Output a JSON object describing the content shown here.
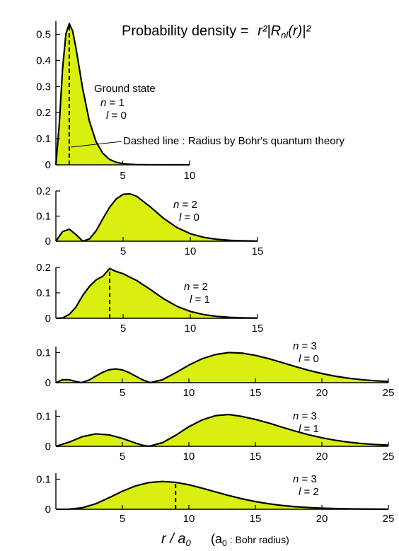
{
  "figure_title": {
    "prefix": "Probability density =",
    "formula": "r²|R",
    "formula_sub": "nl",
    "formula_end": "(r)|²"
  },
  "xaxis": {
    "symbol": "r / a",
    "symbol_sub": "0",
    "note_open": "(a",
    "note_sub": "0",
    "note_rest": ": Bohr radius)"
  },
  "colors": {
    "fill": "#d8ef0f",
    "stroke": "#000000"
  },
  "chart_data": [
    {
      "type": "area",
      "id": "n1l0",
      "labels": [
        "Ground state",
        "n = 1",
        "l = 0"
      ],
      "annotation": "Dashed line : Radius by Bohr's quantum theory",
      "dashed_x": 1,
      "xlim": [
        0,
        10
      ],
      "ylim": [
        0,
        0.55
      ],
      "xticks": [
        5,
        10
      ],
      "yticks": [
        0,
        0.1,
        0.2,
        0.3,
        0.4,
        0.5
      ],
      "ytick_labels": [
        "0",
        "0.1",
        "0.2",
        "0.3",
        "0.4",
        "0.5"
      ],
      "x": [
        0,
        0.25,
        0.5,
        0.75,
        1,
        1.25,
        1.5,
        1.75,
        2,
        2.5,
        3,
        3.5,
        4,
        4.5,
        5,
        5.5,
        6,
        7,
        8,
        9,
        10
      ],
      "y": [
        0,
        0.152,
        0.368,
        0.502,
        0.541,
        0.513,
        0.448,
        0.37,
        0.293,
        0.168,
        0.089,
        0.045,
        0.021,
        0.0099,
        0.0045,
        0.002,
        0.0009,
        0.0002,
        0,
        0,
        0
      ]
    },
    {
      "type": "area",
      "id": "n2l0",
      "labels": [
        "n = 2",
        "l = 0"
      ],
      "xlim": [
        0,
        15
      ],
      "ylim": [
        0,
        0.2
      ],
      "xticks": [
        5,
        10,
        15
      ],
      "yticks": [
        0,
        0.1,
        0.2
      ],
      "ytick_labels": [
        "0",
        "0.1",
        "0.2"
      ],
      "x": [
        0,
        0.5,
        1,
        1.5,
        2,
        2.5,
        3,
        3.5,
        4,
        4.5,
        5,
        5.5,
        6,
        7,
        8,
        9,
        10,
        11,
        12,
        13,
        14,
        15
      ],
      "y": [
        0,
        0.0383,
        0.0478,
        0.0259,
        0,
        0.0091,
        0.0419,
        0.0898,
        0.1353,
        0.1689,
        0.1866,
        0.1887,
        0.1792,
        0.1378,
        0.0916,
        0.0545,
        0.0298,
        0.0153,
        0.0074,
        0.0034,
        0.0015,
        0.0006
      ]
    },
    {
      "type": "area",
      "id": "n2l1",
      "labels": [
        "n = 2",
        "l = 1"
      ],
      "dashed_x": 4,
      "xlim": [
        0,
        15
      ],
      "ylim": [
        0,
        0.2
      ],
      "xticks": [
        5,
        10,
        15
      ],
      "yticks": [
        0,
        0.1,
        0.2
      ],
      "ytick_labels": [
        "0",
        "0.1",
        "0.2"
      ],
      "x": [
        0,
        0.5,
        1,
        1.5,
        2,
        2.5,
        3,
        3.5,
        4,
        4.5,
        5,
        5.5,
        6,
        7,
        8,
        9,
        10,
        11,
        12,
        13,
        14,
        15
      ],
      "y": [
        0,
        0.0016,
        0.0153,
        0.0446,
        0.0902,
        0.1255,
        0.1512,
        0.1655,
        0.1954,
        0.1834,
        0.1751,
        0.1616,
        0.1488,
        0.1142,
        0.0771,
        0.0473,
        0.0269,
        0.0144,
        0.0073,
        0.0036,
        0.0017,
        0.0008
      ]
    },
    {
      "type": "area",
      "id": "n3l0",
      "labels": [
        "n = 3",
        "l = 0"
      ],
      "xlim": [
        0,
        25
      ],
      "ylim": [
        0,
        0.12
      ],
      "xticks": [
        5,
        10,
        15,
        20,
        25
      ],
      "yticks": [
        0,
        0.1
      ],
      "ytick_labels": [
        "0",
        "0.1"
      ],
      "x": [
        0,
        0.5,
        1,
        1.5,
        1.9,
        2.5,
        3,
        3.5,
        4,
        4.5,
        5,
        5.5,
        6,
        6.5,
        7.1,
        8,
        9,
        10,
        11,
        12,
        13,
        14,
        15,
        16,
        17,
        18,
        19,
        20,
        21,
        22,
        23,
        24,
        25
      ],
      "y": [
        0,
        0.0096,
        0.0097,
        0.0038,
        0,
        0.0086,
        0.0218,
        0.0341,
        0.043,
        0.0457,
        0.0424,
        0.0336,
        0.0216,
        0.0098,
        0,
        0.0094,
        0.0329,
        0.0584,
        0.0797,
        0.0935,
        0.1002,
        0.0982,
        0.0908,
        0.0799,
        0.0669,
        0.0536,
        0.041,
        0.0303,
        0.0215,
        0.0148,
        0.0098,
        0.0063,
        0.0039
      ]
    },
    {
      "type": "area",
      "id": "n3l1",
      "labels": [
        "n = 3",
        "l = 1"
      ],
      "xlim": [
        0,
        25
      ],
      "ylim": [
        0,
        0.12
      ],
      "xticks": [
        5,
        10,
        15,
        20,
        25
      ],
      "yticks": [
        0,
        0.1
      ],
      "ytick_labels": [
        "0",
        "0.1"
      ],
      "x": [
        0,
        1,
        2,
        3,
        4,
        5,
        5.5,
        6,
        6.5,
        7,
        8,
        9,
        10,
        11,
        12,
        13,
        14,
        15,
        16,
        17,
        18,
        19,
        20,
        21,
        22,
        23,
        24,
        25
      ],
      "y": [
        0,
        0.0139,
        0.0323,
        0.0413,
        0.0381,
        0.0264,
        0.0184,
        0.0104,
        0.0036,
        0,
        0.0118,
        0.0365,
        0.0654,
        0.0878,
        0.1021,
        0.1059,
        0.0993,
        0.0895,
        0.0776,
        0.0637,
        0.0506,
        0.0384,
        0.0283,
        0.0201,
        0.0138,
        0.0092,
        0.006,
        0.0038
      ]
    },
    {
      "type": "area",
      "id": "n3l2",
      "labels": [
        "n = 3",
        "l = 2"
      ],
      "dashed_x": 9,
      "xlim": [
        0,
        25
      ],
      "ylim": [
        0,
        0.12
      ],
      "xticks": [
        5,
        10,
        15,
        20,
        25
      ],
      "yticks": [
        0,
        0.1
      ],
      "ytick_labels": [
        "0",
        "0.1"
      ],
      "x": [
        0,
        1,
        2,
        3,
        4,
        5,
        6,
        7,
        8,
        9,
        10,
        11,
        12,
        13,
        14,
        15,
        16,
        17,
        18,
        19,
        20,
        21,
        22,
        23,
        24,
        25
      ],
      "y": [
        0,
        0.0004,
        0.0051,
        0.0183,
        0.0386,
        0.0599,
        0.0779,
        0.0889,
        0.0925,
        0.0896,
        0.0815,
        0.0702,
        0.0578,
        0.0457,
        0.0347,
        0.0256,
        0.0183,
        0.0127,
        0.0086,
        0.0057,
        0.0037,
        0.0023,
        0.0015,
        0.0009,
        0.0006,
        0.0003
      ]
    }
  ]
}
